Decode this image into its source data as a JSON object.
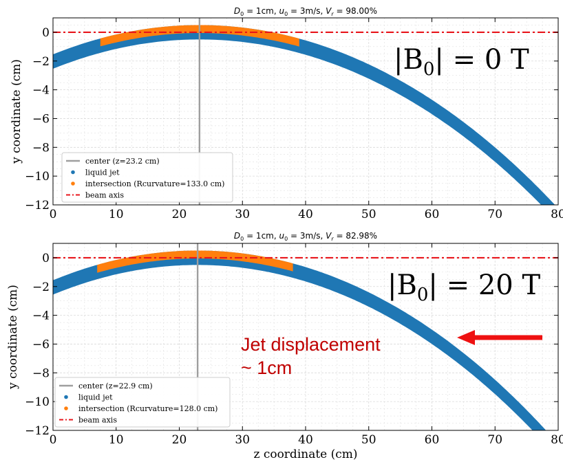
{
  "colors": {
    "jet": "#1f77b4",
    "intersection": "#ff7f0e",
    "center": "#9e9e9e",
    "beam": "#e8151b",
    "arrow": "#ee1111",
    "annotation": "#c00000"
  },
  "chart_data": [
    {
      "type": "scatter",
      "title": "D₀ = 1cm, u₀ = 3m/s, Vᵣ = 98.00%",
      "title_parts": {
        "d_var": "D",
        "d_sub": "0",
        "d_val": " = 1cm, ",
        "u_var": "u",
        "u_sub": "0",
        "u_val": " = 3m/s, ",
        "v_var": "V",
        "v_sub": "r",
        "v_val": " = 98.00%"
      },
      "xlabel": "",
      "ylabel": "y coordinate (cm)",
      "xlim": [
        0,
        80
      ],
      "ylim": [
        -12,
        1
      ],
      "xticks": [
        "0",
        "10",
        "20",
        "30",
        "40",
        "50",
        "60",
        "70",
        "80"
      ],
      "yticks": [
        "0",
        "−2",
        "−4",
        "−6",
        "−8",
        "−10",
        "−12"
      ],
      "grid": true,
      "legend_position": "lower-left",
      "big_label": "|B₀| = 0 T",
      "big_label_parts": {
        "pre": "|B",
        "sub": "0",
        "post": "| = 0 T"
      },
      "jet": {
        "apex_z": 23.2,
        "apex_y": 0.0,
        "curvature_radius_cm": 133.0,
        "width_cm": 1.0
      },
      "intersection_z_range": [
        7.5,
        39.0
      ],
      "center_z": 23.2,
      "beam_axis_y": 0,
      "series": [
        {
          "name": "center (z=23.2 cm)"
        },
        {
          "name": "liquid jet"
        },
        {
          "name": "intersection (Rcurvature=133.0 cm)"
        },
        {
          "name": "beam axis"
        }
      ]
    },
    {
      "type": "scatter",
      "title": "D₀ = 1cm, u₀ = 3m/s, Vᵣ = 82.98%",
      "title_parts": {
        "d_var": "D",
        "d_sub": "0",
        "d_val": " = 1cm, ",
        "u_var": "u",
        "u_sub": "0",
        "u_val": " = 3m/s, ",
        "v_var": "V",
        "v_sub": "r",
        "v_val": " = 82.98%"
      },
      "xlabel": "z coordinate (cm)",
      "ylabel": "y coordinate (cm)",
      "xlim": [
        0,
        80
      ],
      "ylim": [
        -12,
        1
      ],
      "xticks": [
        "0",
        "10",
        "20",
        "30",
        "40",
        "50",
        "60",
        "70",
        "80"
      ],
      "yticks": [
        "0",
        "−2",
        "−4",
        "−6",
        "−8",
        "−10",
        "−12"
      ],
      "grid": true,
      "legend_position": "lower-left",
      "big_label": "|B₀| = 20 T",
      "big_label_parts": {
        "pre": "|B",
        "sub": "0",
        "post": "| = 20 T"
      },
      "jet": {
        "apex_z": 22.9,
        "apex_y": 0.0,
        "curvature_radius_cm": 128.0,
        "width_cm": 1.0
      },
      "intersection_z_range": [
        7.0,
        38.0
      ],
      "center_z": 22.9,
      "beam_axis_y": 0,
      "series": [
        {
          "name": "center (z=22.9 cm)"
        },
        {
          "name": "liquid jet"
        },
        {
          "name": "intersection (Rcurvature=128.0 cm)"
        },
        {
          "name": "beam axis"
        }
      ]
    }
  ],
  "annotation": {
    "line1": "Jet displacement",
    "line2": "~ 1cm"
  }
}
